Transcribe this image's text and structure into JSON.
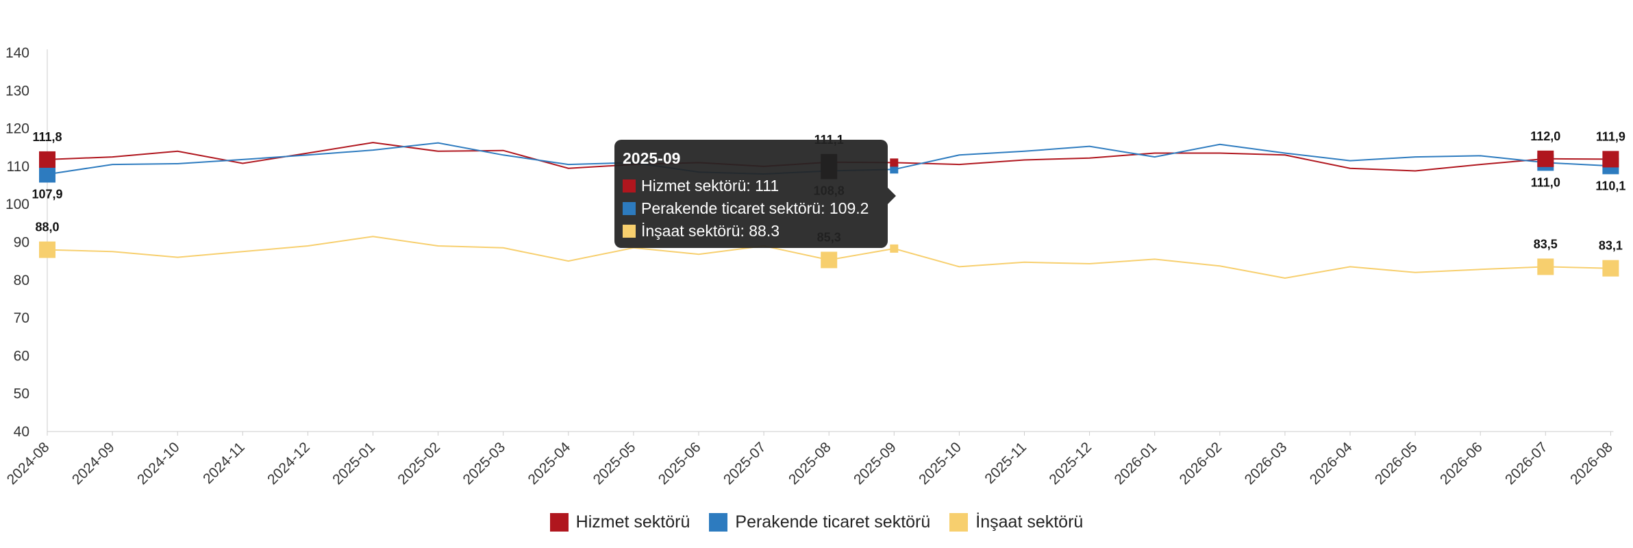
{
  "chart_data": {
    "type": "line",
    "categories": [
      "2024-08",
      "2024-09",
      "2024-10",
      "2024-11",
      "2024-12",
      "2025-01",
      "2025-02",
      "2025-03",
      "2025-04",
      "2025-05",
      "2025-06",
      "2025-07",
      "2025-08",
      "2025-09",
      "2025-10",
      "2025-11",
      "2025-12",
      "2026-01",
      "2026-02",
      "2026-03",
      "2026-04",
      "2026-05",
      "2026-06",
      "2026-07",
      "2026-08"
    ],
    "ylim": [
      40,
      140
    ],
    "yticks": [
      40,
      50,
      60,
      70,
      80,
      90,
      100,
      110,
      120,
      130,
      140
    ],
    "legend_position": "bottom",
    "grid": false,
    "series": [
      {
        "name": "Hizmet sektörü",
        "color": "#b0161e",
        "values": [
          111.8,
          112.5,
          114.0,
          110.8,
          113.5,
          116.3,
          114.0,
          114.2,
          109.5,
          110.5,
          111.0,
          110.0,
          111.1,
          111.0,
          110.5,
          111.7,
          112.2,
          113.5,
          113.5,
          113.0,
          109.5,
          108.8,
          110.5,
          112.0,
          111.9
        ],
        "labels": [
          {
            "index": 0,
            "text": "111,8",
            "pos": "above"
          },
          {
            "index": 12,
            "text": "111,1",
            "pos": "above"
          },
          {
            "index": 23,
            "text": "112,0",
            "pos": "above"
          },
          {
            "index": 24,
            "text": "111,9",
            "pos": "above"
          }
        ]
      },
      {
        "name": "Perakende ticaret sektörü",
        "color": "#2d7bbf",
        "values": [
          107.9,
          110.5,
          110.7,
          111.8,
          113.0,
          114.3,
          116.2,
          113.0,
          110.5,
          111.0,
          108.5,
          108.0,
          108.8,
          109.2,
          113.0,
          114.0,
          115.3,
          112.5,
          115.8,
          113.5,
          111.5,
          112.5,
          112.8,
          111.0,
          110.1
        ],
        "labels": [
          {
            "index": 0,
            "text": "107,9",
            "pos": "below"
          },
          {
            "index": 12,
            "text": "108,8",
            "pos": "below"
          },
          {
            "index": 23,
            "text": "111,0",
            "pos": "below"
          },
          {
            "index": 24,
            "text": "110,1",
            "pos": "below"
          }
        ]
      },
      {
        "name": "İnşaat sektörü",
        "color": "#f7cf6e",
        "values": [
          88.0,
          87.5,
          86.0,
          87.5,
          89.0,
          91.5,
          89.0,
          88.5,
          85.0,
          88.5,
          86.8,
          89.0,
          85.3,
          88.3,
          83.5,
          84.7,
          84.3,
          85.5,
          83.7,
          80.5,
          83.5,
          82.0,
          82.8,
          83.5,
          83.1
        ],
        "labels": [
          {
            "index": 0,
            "text": "88,0",
            "pos": "above"
          },
          {
            "index": 12,
            "text": "85,3",
            "pos": "above"
          },
          {
            "index": 23,
            "text": "83,5",
            "pos": "above"
          },
          {
            "index": 24,
            "text": "83,1",
            "pos": "above"
          }
        ]
      }
    ],
    "markers_at": [
      0,
      12,
      23,
      24
    ],
    "hover_index": 13
  },
  "tooltip": {
    "title": "2025-09",
    "rows": [
      {
        "text": "Hizmet sektörü: 111",
        "color": "#b0161e"
      },
      {
        "text": "Perakende ticaret sektörü: 109.2",
        "color": "#2d7bbf"
      },
      {
        "text": "İnşaat sektörü: 88.3",
        "color": "#f7cf6e"
      }
    ]
  },
  "legend": [
    {
      "label": "Hizmet sektörü",
      "color": "#b0161e"
    },
    {
      "label": "Perakende ticaret sektörü",
      "color": "#2d7bbf"
    },
    {
      "label": "İnşaat sektörü",
      "color": "#f7cf6e"
    }
  ]
}
